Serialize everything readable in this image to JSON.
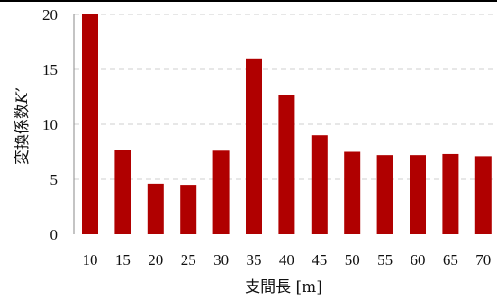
{
  "chart_data": {
    "type": "bar",
    "categories": [
      "10",
      "15",
      "20",
      "25",
      "30",
      "35",
      "40",
      "45",
      "50",
      "55",
      "60",
      "65",
      "70"
    ],
    "values": [
      20.0,
      7.7,
      4.6,
      4.5,
      7.6,
      16.0,
      12.7,
      9.0,
      7.5,
      7.2,
      7.2,
      7.3,
      7.1
    ],
    "xlabel": "支間長 [m]",
    "ylabel": "変換係数",
    "ylabel_symbol": "K’",
    "ylim": [
      0,
      20
    ],
    "yticks": [
      "0",
      "5",
      "10",
      "15",
      "20"
    ],
    "grid": true,
    "bar_color": "#b00000"
  }
}
